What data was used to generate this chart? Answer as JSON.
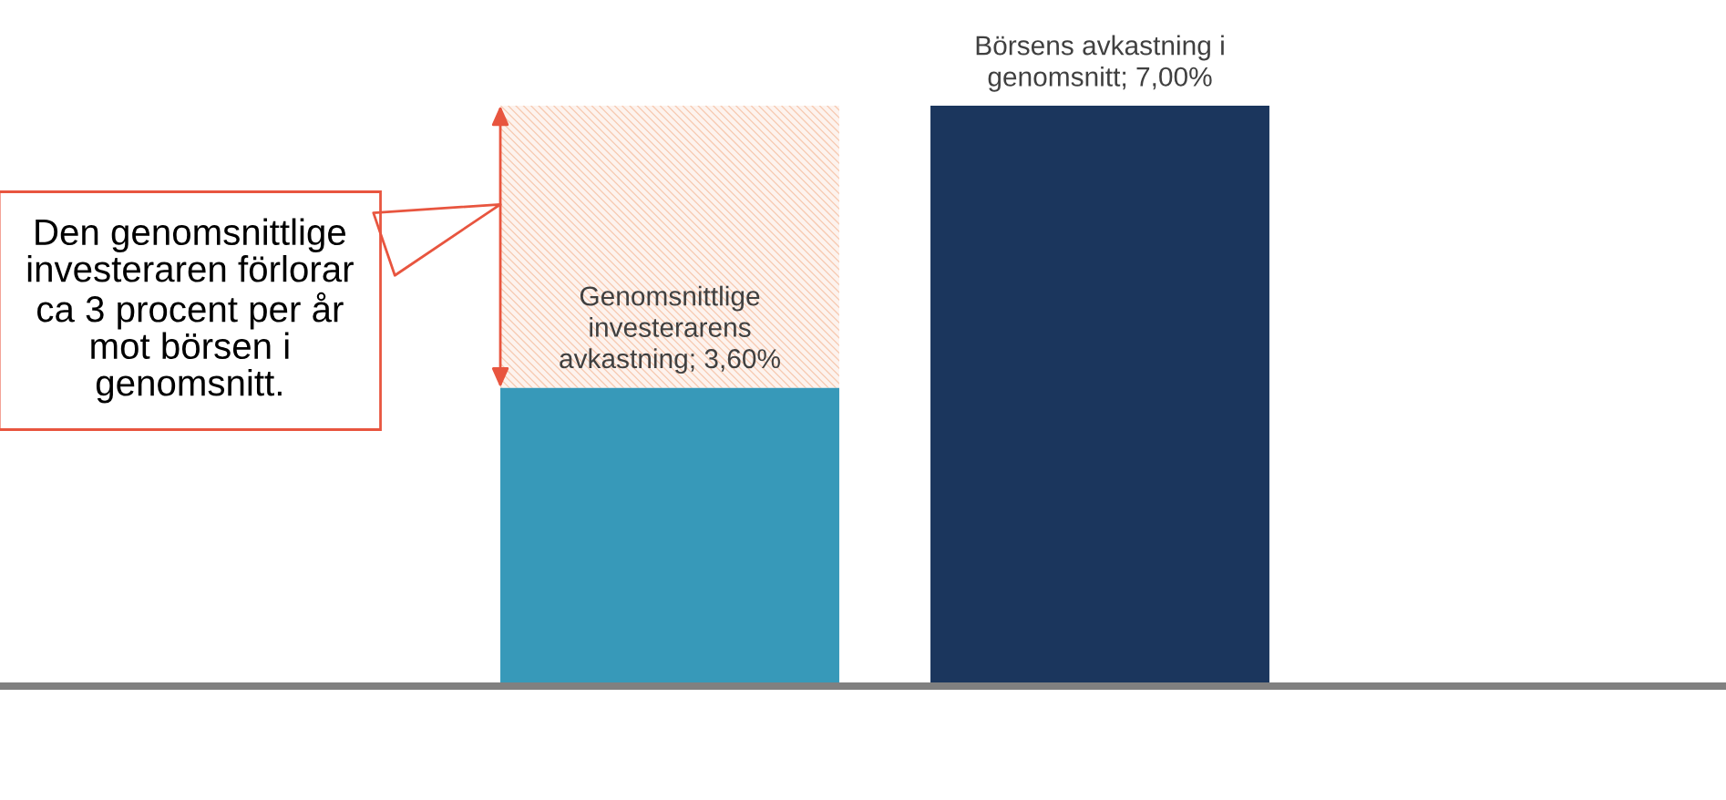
{
  "chart_data": {
    "type": "bar",
    "categories": [
      null,
      null
    ],
    "stacked": true,
    "series": [
      {
        "colors": [
          "#3799b9",
          "#1b365d"
        ],
        "values": [
          3.6,
          7.0
        ],
        "value_labels": [
          "Genomsnittlige\ninvesterarens\navkastning; 3,60%",
          "Börsens avkastning i\ngenomsnitt; 7,00%"
        ]
      },
      {
        "color": "#f7c9b0",
        "values": [
          3.4,
          null
        ]
      }
    ],
    "annotations": [
      "Den genomsnittlige\ninvesteraren förlorar\nca 3 procent per år\nmot börsen i\ngenomsnitt."
    ]
  }
}
